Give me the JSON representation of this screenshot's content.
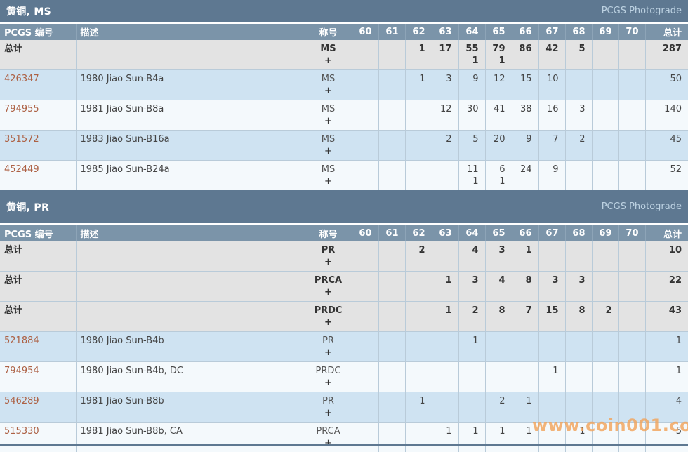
{
  "watermark": "www.coin001.com",
  "colors": {
    "title_bar": "#5e7891",
    "header_row": "#7b94a9",
    "row_blue": "#cfe3f2",
    "row_light": "#f4f9fc",
    "row_total_gray": "#e3e3e3",
    "pcgs_number_link": "#ad6144",
    "photograde_link": "#bdd2e2",
    "watermark_orange": "#f2a45c"
  },
  "columns": {
    "number": "PCGS 编号",
    "desc": "描述",
    "desig": "称号",
    "grades": [
      "60",
      "61",
      "62",
      "63",
      "64",
      "65",
      "66",
      "67",
      "68",
      "69",
      "70"
    ],
    "total": "总计"
  },
  "tables": [
    {
      "title": "黄铜, MS",
      "link": "PCGS Photograde",
      "rows": [
        {
          "type": "total",
          "number": "总计",
          "desc": "",
          "desig": "MS",
          "plus": "+",
          "counts": [
            "",
            "",
            "1",
            "17",
            "55|1",
            "79|1",
            "86",
            "42",
            "5",
            "",
            ""
          ],
          "total": "287"
        },
        {
          "type": "data",
          "number": "426347",
          "desc": "1980 Jiao Sun-B4a",
          "desig": "MS",
          "plus": "+",
          "counts": [
            "",
            "",
            "1",
            "3",
            "9",
            "12",
            "15",
            "10",
            "",
            "",
            ""
          ],
          "total": "50"
        },
        {
          "type": "data",
          "number": "794955",
          "desc": "1981 Jiao Sun-B8a",
          "desig": "MS",
          "plus": "+",
          "counts": [
            "",
            "",
            "",
            "12",
            "30",
            "41",
            "38",
            "16",
            "3",
            "",
            ""
          ],
          "total": "140"
        },
        {
          "type": "data",
          "number": "351572",
          "desc": "1983 Jiao Sun-B16a",
          "desig": "MS",
          "plus": "+",
          "counts": [
            "",
            "",
            "",
            "2",
            "5",
            "20",
            "9",
            "7",
            "2",
            "",
            ""
          ],
          "total": "45"
        },
        {
          "type": "data",
          "number": "452449",
          "desc": "1985 Jiao Sun-B24a",
          "desig": "MS",
          "plus": "+",
          "counts": [
            "",
            "",
            "",
            "",
            "11|1",
            "6|1",
            "24",
            "9",
            "",
            "",
            ""
          ],
          "total": "52"
        }
      ]
    },
    {
      "title": "黄铜, PR",
      "link": "PCGS Photograde",
      "rows": [
        {
          "type": "total",
          "number": "总计",
          "desc": "",
          "desig": "PR",
          "plus": "+",
          "counts": [
            "",
            "",
            "2",
            "",
            "4",
            "3",
            "1",
            "",
            "",
            "",
            ""
          ],
          "total": "10"
        },
        {
          "type": "total",
          "number": "总计",
          "desc": "",
          "desig": "PRCA",
          "plus": "+",
          "counts": [
            "",
            "",
            "",
            "1",
            "3",
            "4",
            "8",
            "3",
            "3",
            "",
            ""
          ],
          "total": "22"
        },
        {
          "type": "total",
          "number": "总计",
          "desc": "",
          "desig": "PRDC",
          "plus": "+",
          "counts": [
            "",
            "",
            "",
            "1",
            "2",
            "8",
            "7",
            "15",
            "8",
            "2",
            ""
          ],
          "total": "43"
        },
        {
          "type": "data",
          "number": "521884",
          "desc": "1980 Jiao Sun-B4b",
          "desig": "PR",
          "plus": "+",
          "counts": [
            "",
            "",
            "",
            "",
            "1",
            "",
            "",
            "",
            "",
            "",
            ""
          ],
          "total": "1"
        },
        {
          "type": "data",
          "number": "794954",
          "desc": "1980 Jiao Sun-B4b, DC",
          "desig": "PRDC",
          "plus": "+",
          "counts": [
            "",
            "",
            "",
            "",
            "",
            "",
            "",
            "1",
            "",
            "",
            ""
          ],
          "total": "1"
        },
        {
          "type": "data",
          "number": "546289",
          "desc": "1981 Jiao Sun-B8b",
          "desig": "PR",
          "plus": "+",
          "counts": [
            "",
            "",
            "1",
            "",
            "",
            "2",
            "1",
            "",
            "",
            "",
            ""
          ],
          "total": "4"
        },
        {
          "type": "data",
          "number": "515330",
          "desc": "1981 Jiao Sun-B8b, CA",
          "desig": "PRCA",
          "plus": "+",
          "counts": [
            "",
            "",
            "",
            "1",
            "1",
            "1",
            "1",
            "",
            "1",
            "",
            ""
          ],
          "total": "5"
        }
      ]
    }
  ]
}
